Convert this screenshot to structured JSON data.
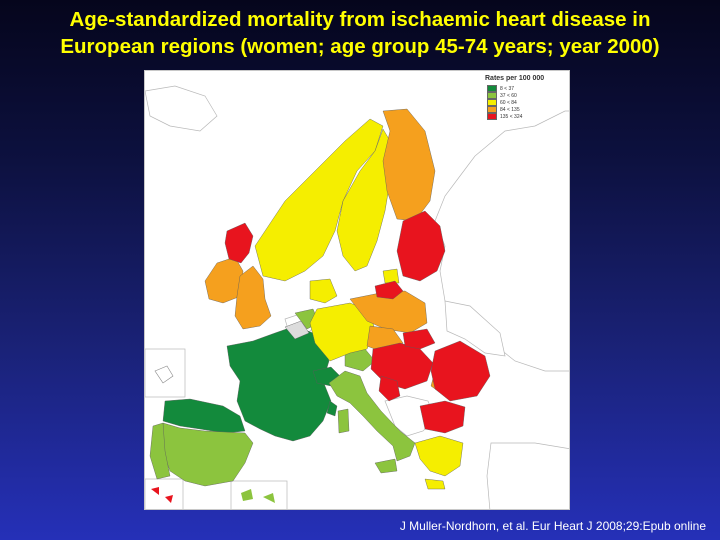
{
  "title": {
    "line1": "Age-standardized mortality from ischaemic heart disease in",
    "line2": "European regions (women; age group 45-74 years; year 2000)"
  },
  "legend": {
    "title": "Rates per 100 000",
    "items": [
      {
        "label": "8 < 37",
        "color": "#138a3c"
      },
      {
        "label": "37 < 60",
        "color": "#8cc43e"
      },
      {
        "label": "60 < 84",
        "color": "#f5ee00"
      },
      {
        "label": "84 < 135",
        "color": "#f5a01e"
      },
      {
        "label": "135 < 324",
        "color": "#e8141e"
      }
    ]
  },
  "citation": "J Muller-Nordhorn, et al. Eur Heart J 2008;29:Epub online"
}
